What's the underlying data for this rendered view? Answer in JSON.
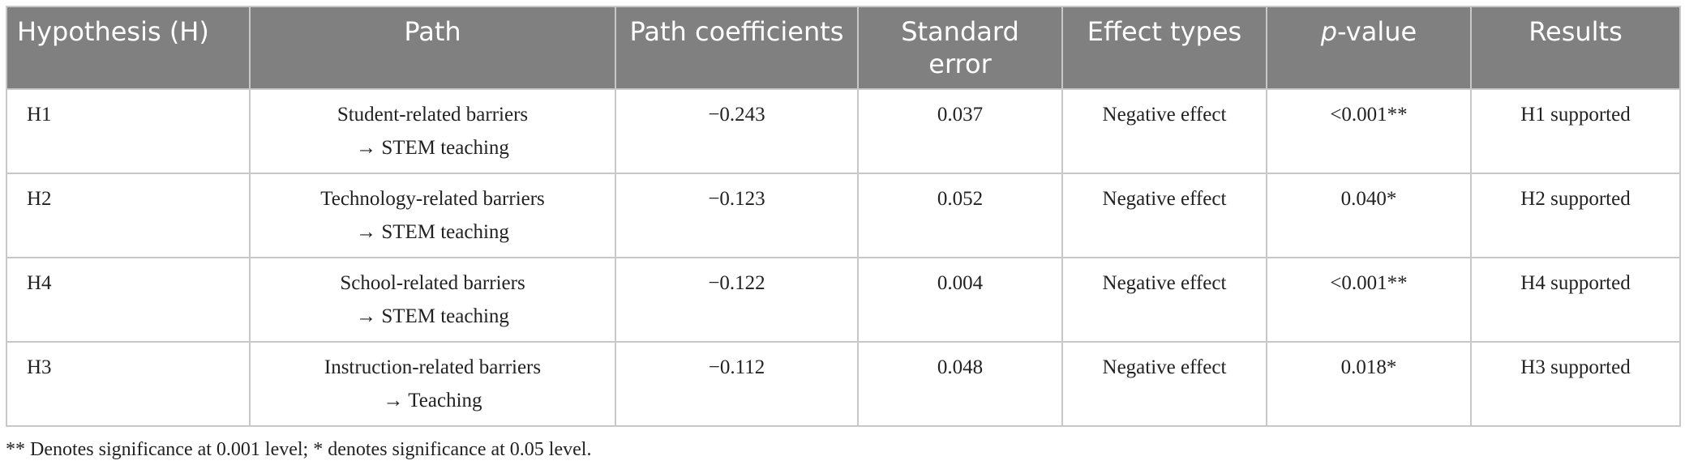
{
  "table": {
    "header": [
      "Hypothesis (H)",
      "Path",
      "Path coefficients",
      "Standard error",
      "Effect types",
      [
        "p",
        "-value"
      ],
      "Results"
    ],
    "rows": [
      [
        "H1",
        [
          "Student-related barriers",
          "→ STEM teaching"
        ],
        "−0.243",
        "0.037",
        "Negative effect",
        "<0.001**",
        "H1 supported"
      ],
      [
        "H2",
        [
          "Technology-related barriers",
          "→ STEM teaching"
        ],
        "−0.123",
        "0.052",
        "Negative effect",
        "0.040*",
        "H2 supported"
      ],
      [
        "H4",
        [
          "School-related barriers",
          "→ STEM teaching"
        ],
        "−0.122",
        "0.004",
        "Negative effect",
        "<0.001**",
        "H4 supported"
      ],
      [
        "H3",
        [
          "Instruction-related barriers",
          "→ Teaching"
        ],
        "−0.112",
        "0.048",
        "Negative effect",
        "0.018*",
        "H3 supported"
      ]
    ],
    "footnote": "** Denotes significance at 0.001 level; * denotes significance at 0.05 level."
  }
}
